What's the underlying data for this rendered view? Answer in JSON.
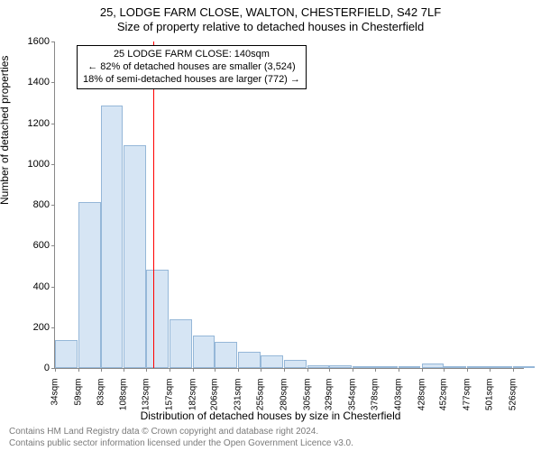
{
  "title_line1": "25, LODGE FARM CLOSE, WALTON, CHESTERFIELD, S42 7LF",
  "title_line2": "Size of property relative to detached houses in Chesterfield",
  "y_axis_label": "Number of detached properties",
  "x_axis_label": "Distribution of detached houses by size in Chesterfield",
  "footer_line1": "Contains HM Land Registry data © Crown copyright and database right 2024.",
  "footer_line2": "Contains public sector information licensed under the Open Government Licence v3.0.",
  "chart": {
    "type": "histogram",
    "background_color": "#ffffff",
    "bar_fill": "#d6e5f4",
    "bar_border": "#95b7d8",
    "axis_color": "#888888",
    "reference_line_color": "#ff0000",
    "reference_value_sqm": 140,
    "ylim": [
      0,
      1600
    ],
    "ytick_step": 200,
    "xlim_sqm": [
      34,
      538
    ],
    "x_tick_labels": [
      "34sqm",
      "59sqm",
      "83sqm",
      "108sqm",
      "132sqm",
      "157sqm",
      "182sqm",
      "206sqm",
      "231sqm",
      "255sqm",
      "280sqm",
      "305sqm",
      "329sqm",
      "354sqm",
      "378sqm",
      "403sqm",
      "428sqm",
      "452sqm",
      "477sqm",
      "501sqm",
      "526sqm"
    ],
    "bars": [
      {
        "x_sqm": 34,
        "count": 135
      },
      {
        "x_sqm": 59,
        "count": 815
      },
      {
        "x_sqm": 83,
        "count": 1285
      },
      {
        "x_sqm": 108,
        "count": 1090
      },
      {
        "x_sqm": 132,
        "count": 480
      },
      {
        "x_sqm": 157,
        "count": 240
      },
      {
        "x_sqm": 182,
        "count": 160
      },
      {
        "x_sqm": 206,
        "count": 130
      },
      {
        "x_sqm": 231,
        "count": 80
      },
      {
        "x_sqm": 255,
        "count": 60
      },
      {
        "x_sqm": 280,
        "count": 40
      },
      {
        "x_sqm": 305,
        "count": 15
      },
      {
        "x_sqm": 329,
        "count": 15
      },
      {
        "x_sqm": 354,
        "count": 10
      },
      {
        "x_sqm": 378,
        "count": 10
      },
      {
        "x_sqm": 403,
        "count": 6
      },
      {
        "x_sqm": 428,
        "count": 20
      },
      {
        "x_sqm": 452,
        "count": 2
      },
      {
        "x_sqm": 477,
        "count": 2
      },
      {
        "x_sqm": 501,
        "count": 2
      },
      {
        "x_sqm": 526,
        "count": 2
      }
    ],
    "bar_width_sqm": 24
  },
  "annotation": {
    "line1": "25 LODGE FARM CLOSE: 140sqm",
    "line2": "← 82% of detached houses are smaller (3,524)",
    "line3": "18% of semi-detached houses are larger (772) →",
    "border_color": "#000000",
    "background": "#ffffff",
    "fontsize": 11
  }
}
